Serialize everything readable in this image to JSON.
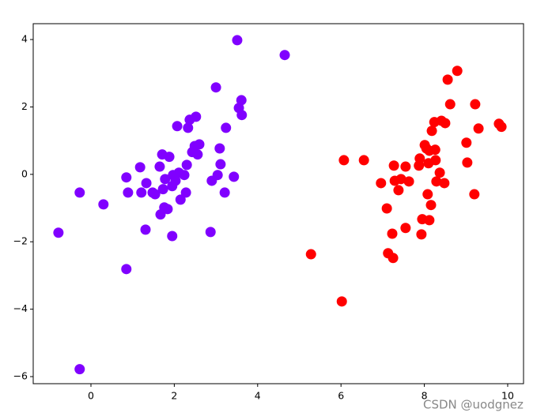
{
  "chart_data": {
    "type": "scatter",
    "xlim": [
      -1.385,
      10.38
    ],
    "ylim": [
      -6.21,
      4.47
    ],
    "xticks": [
      0,
      2,
      4,
      6,
      8,
      10
    ],
    "yticks": [
      {
        "value": -6,
        "label": "−6"
      },
      {
        "value": -4,
        "label": "−4"
      },
      {
        "value": -2,
        "label": "−2"
      },
      0,
      2,
      4
    ],
    "series": [
      {
        "color": "#8000ff",
        "x": [
          -0.78,
          -0.27,
          -0.27,
          0.3,
          0.85,
          0.85,
          0.89,
          1.18,
          1.21,
          1.33,
          1.31,
          1.48,
          1.54,
          1.65,
          1.71,
          1.88,
          1.73,
          1.78,
          1.76,
          1.67,
          1.84,
          1.95,
          1.95,
          1.97,
          2.03,
          2.11,
          2.07,
          2.15,
          2.24,
          2.28,
          2.3,
          2.33,
          2.37,
          2.43,
          2.49,
          2.52,
          2.56,
          2.6,
          2.87,
          2.9,
          3.0,
          3.04,
          3.09,
          3.11,
          3.21,
          3.24,
          3.43,
          3.51,
          3.55,
          3.61,
          3.62,
          4.65
        ],
        "y": [
          -1.73,
          -0.54,
          -5.78,
          -0.89,
          -2.81,
          -0.09,
          -0.54,
          0.21,
          -0.54,
          -0.26,
          -1.64,
          -0.54,
          -0.59,
          0.23,
          0.59,
          0.52,
          -0.44,
          -0.14,
          -0.98,
          -1.19,
          -1.03,
          -0.35,
          -1.83,
          -0.02,
          -0.19,
          0.05,
          1.43,
          -0.75,
          -0.02,
          -0.54,
          0.28,
          1.38,
          1.62,
          0.66,
          0.84,
          1.71,
          0.59,
          0.89,
          -1.71,
          -0.19,
          2.58,
          -0.02,
          0.77,
          0.3,
          -0.54,
          1.38,
          -0.07,
          3.98,
          1.97,
          2.2,
          1.76,
          3.54
        ]
      },
      {
        "color": "#ff0000",
        "x": [
          5.28,
          6.02,
          6.07,
          6.55,
          6.96,
          7.1,
          7.13,
          7.23,
          7.25,
          7.27,
          7.29,
          7.38,
          7.44,
          7.55,
          7.55,
          7.63,
          7.87,
          7.89,
          7.93,
          7.95,
          8.01,
          8.05,
          8.12,
          8.08,
          8.1,
          8.12,
          8.16,
          8.18,
          8.24,
          8.26,
          8.27,
          8.29,
          8.37,
          8.41,
          8.48,
          8.5,
          8.56,
          8.62,
          8.79,
          9.01,
          9.03,
          9.2,
          9.22,
          9.3,
          9.79,
          9.85
        ],
        "y": [
          -2.37,
          -3.77,
          0.42,
          0.42,
          -0.26,
          -1.01,
          -2.34,
          -1.76,
          -2.48,
          0.26,
          -0.19,
          -0.47,
          -0.14,
          -1.59,
          0.23,
          -0.21,
          0.26,
          0.47,
          -1.78,
          -1.33,
          0.87,
          0.77,
          0.7,
          -0.59,
          0.33,
          -1.36,
          -0.91,
          1.29,
          1.55,
          0.73,
          0.42,
          -0.21,
          0.05,
          1.59,
          -0.26,
          1.52,
          2.81,
          2.08,
          3.07,
          0.94,
          0.35,
          -0.59,
          2.08,
          1.36,
          1.5,
          1.41
        ]
      }
    ],
    "watermark": "CSDN @uodgnez"
  }
}
